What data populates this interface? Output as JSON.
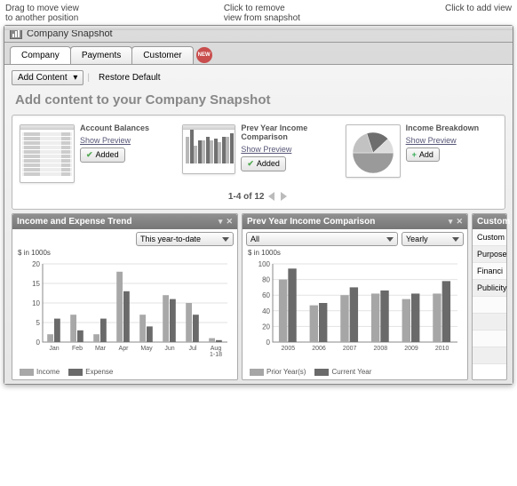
{
  "annotations": {
    "left_l1": "Drag to move view",
    "left_l2": "to another position",
    "mid_l1": "Click to remove",
    "mid_l2": "view from snapshot",
    "right_l1": "Click to add view"
  },
  "window": {
    "title": "Company Snapshot"
  },
  "tabs": {
    "items": [
      "Company",
      "Payments",
      "Customer"
    ],
    "active_index": 0,
    "new_badge": "NEW"
  },
  "toolbar": {
    "add_content": "Add Content",
    "restore": "Restore Default"
  },
  "heading": "Add content to your Company Snapshot",
  "cards": [
    {
      "title": "Account Balances",
      "link": "Show Preview",
      "btn": "Added",
      "added": true,
      "thumb_rows": 10
    },
    {
      "title": "Prev Year Income Comparison",
      "link": "Show Preview",
      "btn": "Added",
      "added": true,
      "thumb_bars": {
        "pairs": [
          [
            30,
            38
          ],
          [
            20,
            26
          ],
          [
            26,
            30
          ],
          [
            26,
            28
          ],
          [
            24,
            30
          ],
          [
            30,
            34
          ]
        ],
        "colors": [
          "#b8b8b8",
          "#707070"
        ]
      }
    },
    {
      "title": "Income Breakdown",
      "link": "Show Preview",
      "btn": "Add",
      "added": false,
      "pie": {
        "slices": [
          50,
          20,
          18,
          12
        ],
        "colors": [
          "#9a9a9a",
          "#c2c2c2",
          "#6e6e6e",
          "#dcdcdc"
        ]
      }
    }
  ],
  "pager": {
    "text": "1-4 of 12"
  },
  "widgets": {
    "left": {
      "title": "Income and Expense Trend",
      "dropdown": "This year-to-date",
      "ylabel": "$ in 1000s",
      "categories": [
        "Jan",
        "Feb",
        "Mar",
        "Apr",
        "May",
        "Jun",
        "Jul",
        "Aug 1-18"
      ],
      "income": [
        2,
        7,
        2,
        18,
        7,
        12,
        10,
        1
      ],
      "expense": [
        6,
        3,
        6,
        13,
        4,
        11,
        7,
        0.5
      ],
      "ylim": [
        0,
        20
      ],
      "ytick_step": 5,
      "colors": {
        "income": "#a8a8a8",
        "expense": "#6a6a6a",
        "grid": "#e2e2e2",
        "axis": "#888"
      },
      "legend": [
        "Income",
        "Expense"
      ]
    },
    "right": {
      "title": "Prev Year Income Comparison",
      "dropdown1": "All",
      "dropdown2": "Yearly",
      "ylabel": "$ in 1000s",
      "categories": [
        "2005",
        "2006",
        "2007",
        "2008",
        "2009",
        "2010"
      ],
      "prior": [
        80,
        47,
        60,
        62,
        55,
        62
      ],
      "current": [
        94,
        50,
        70,
        66,
        62,
        78
      ],
      "ylim": [
        0,
        100
      ],
      "ytick_step": 20,
      "colors": {
        "prior": "#a6a6a6",
        "current": "#6a6a6a",
        "grid": "#e2e2e2",
        "axis": "#888"
      },
      "legend": [
        "Prior Year(s)",
        "Current Year"
      ]
    },
    "sidebar": {
      "title": "Custom",
      "rows": [
        "Custom",
        "Purpose",
        "Financi",
        "Publicity"
      ]
    }
  }
}
